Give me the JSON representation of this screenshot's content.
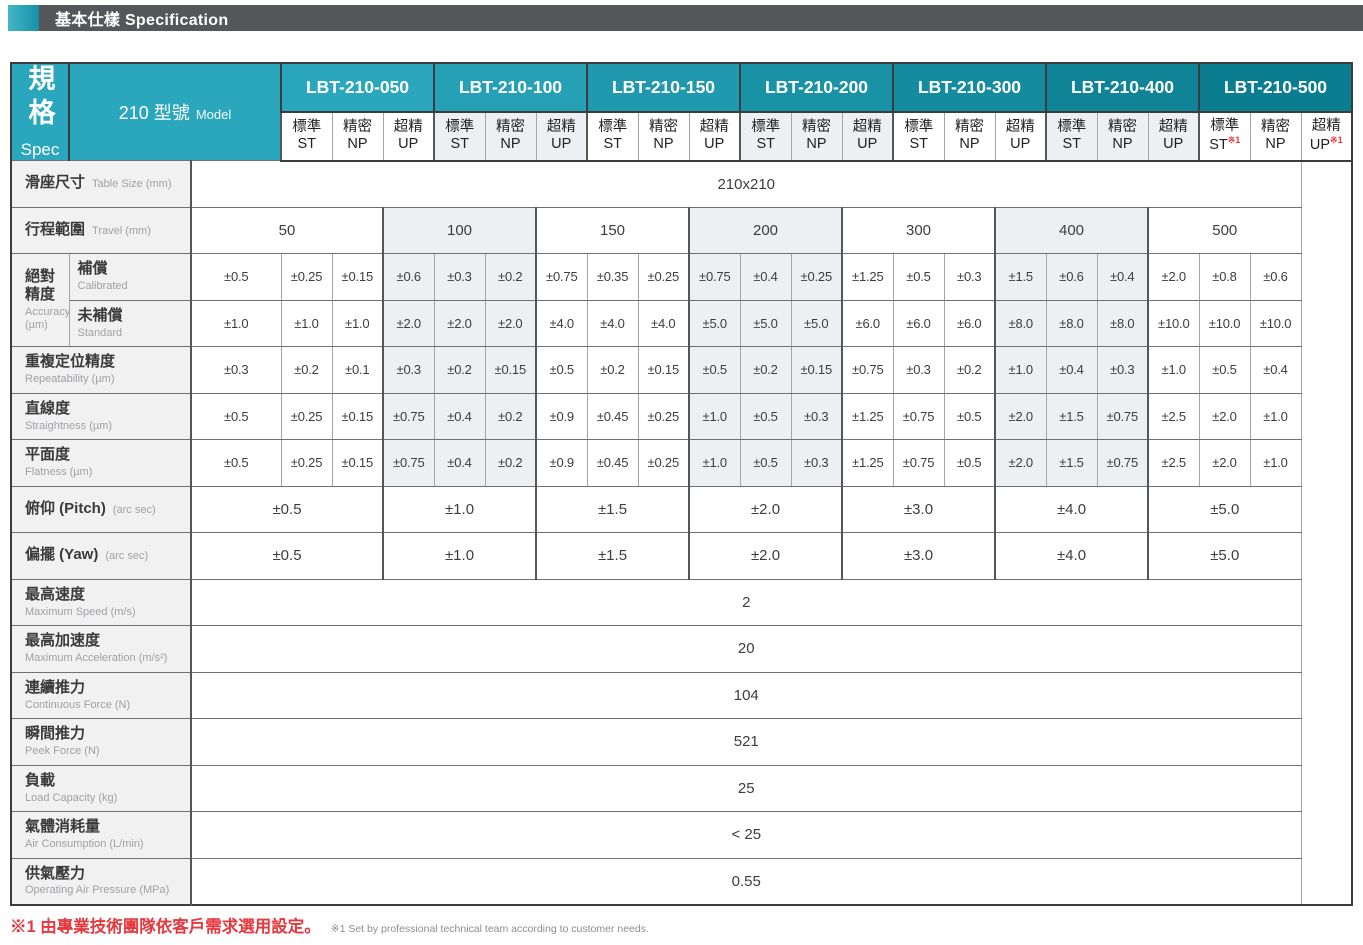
{
  "title_bar": {
    "title": "基本仕樣 Specification"
  },
  "footnote": {
    "zh": "※1 由專業技術團隊依客戶需求選用設定。",
    "en": "※1 Set by professional technical team according to customer needs."
  },
  "colors": {
    "accent_teal": "#2BA7BD",
    "header_teal_dark": "#0A7D90",
    "title_bar_gray": "#545659",
    "shaded_column": "#EDEFF2",
    "row_label_bg": "#F1F1F2",
    "footnote_red": "#E6393F"
  },
  "spec_table": {
    "sidebar": {
      "zh": "規格",
      "en": "Spec"
    },
    "corner": {
      "zh": "210 型號",
      "en": "Model"
    },
    "models": [
      "LBT-210-050",
      "LBT-210-100",
      "LBT-210-150",
      "LBT-210-200",
      "LBT-210-300",
      "LBT-210-400",
      "LBT-210-500"
    ],
    "grades": [
      {
        "zh": "標準",
        "en": "ST"
      },
      {
        "zh": "精密",
        "en": "NP"
      },
      {
        "zh": "超精",
        "en": "UP"
      }
    ],
    "footnote_marks": [
      {
        "model_index": 6,
        "grade_index": 0,
        "mark": "※1"
      },
      {
        "model_index": 6,
        "grade_index": 2,
        "mark": "※1"
      }
    ],
    "rows": [
      {
        "id": "table_size",
        "kind": "full",
        "inline": true,
        "zh": "滑座尺寸",
        "en": "Table Size (mm)",
        "values": [
          "210x210"
        ]
      },
      {
        "id": "travel",
        "kind": "model",
        "inline": true,
        "zh": "行程範圍",
        "en": "Travel (mm)",
        "values": [
          "50",
          "100",
          "150",
          "200",
          "300",
          "400",
          "500"
        ]
      },
      {
        "id": "accuracy_calibrated",
        "kind": "cells",
        "group": {
          "zh": "絕對精度",
          "en": "Accuracy (µm)"
        },
        "sub": {
          "zh": "補償",
          "en": "Calibrated"
        },
        "values": [
          "±0.5",
          "±0.25",
          "±0.15",
          "±0.6",
          "±0.3",
          "±0.2",
          "±0.75",
          "±0.35",
          "±0.25",
          "±0.75",
          "±0.4",
          "±0.25",
          "±1.25",
          "±0.5",
          "±0.3",
          "±1.5",
          "±0.6",
          "±0.4",
          "±2.0",
          "±0.8",
          "±0.6"
        ]
      },
      {
        "id": "accuracy_standard",
        "kind": "cells",
        "sub": {
          "zh": "未補償",
          "en": "Standard"
        },
        "values": [
          "±1.0",
          "±1.0",
          "±1.0",
          "±2.0",
          "±2.0",
          "±2.0",
          "±4.0",
          "±4.0",
          "±4.0",
          "±5.0",
          "±5.0",
          "±5.0",
          "±6.0",
          "±6.0",
          "±6.0",
          "±8.0",
          "±8.0",
          "±8.0",
          "±10.0",
          "±10.0",
          "±10.0"
        ]
      },
      {
        "id": "repeatability",
        "kind": "cells",
        "zh": "重複定位精度",
        "en": "Repeatability (µm)",
        "values": [
          "±0.3",
          "±0.2",
          "±0.1",
          "±0.3",
          "±0.2",
          "±0.15",
          "±0.5",
          "±0.2",
          "±0.15",
          "±0.5",
          "±0.2",
          "±0.15",
          "±0.75",
          "±0.3",
          "±0.2",
          "±1.0",
          "±0.4",
          "±0.3",
          "±1.0",
          "±0.5",
          "±0.4"
        ]
      },
      {
        "id": "straightness",
        "kind": "cells",
        "zh": "直線度",
        "en": "Straightness (µm)",
        "values": [
          "±0.5",
          "±0.25",
          "±0.15",
          "±0.75",
          "±0.4",
          "±0.2",
          "±0.9",
          "±0.45",
          "±0.25",
          "±1.0",
          "±0.5",
          "±0.3",
          "±1.25",
          "±0.75",
          "±0.5",
          "±2.0",
          "±1.5",
          "±0.75",
          "±2.5",
          "±2.0",
          "±1.0"
        ]
      },
      {
        "id": "flatness",
        "kind": "cells",
        "zh": "平面度",
        "en": "Flatness (µm)",
        "values": [
          "±0.5",
          "±0.25",
          "±0.15",
          "±0.75",
          "±0.4",
          "±0.2",
          "±0.9",
          "±0.45",
          "±0.25",
          "±1.0",
          "±0.5",
          "±0.3",
          "±1.25",
          "±0.75",
          "±0.5",
          "±2.0",
          "±1.5",
          "±0.75",
          "±2.5",
          "±2.0",
          "±1.0"
        ]
      },
      {
        "id": "pitch",
        "kind": "model",
        "inline": true,
        "zh": "俯仰 (Pitch)",
        "en": "(arc sec)",
        "values": [
          "±0.5",
          "±1.0",
          "±1.5",
          "±2.0",
          "±3.0",
          "±4.0",
          "±5.0"
        ]
      },
      {
        "id": "yaw",
        "kind": "model",
        "inline": true,
        "zh": "偏擺 (Yaw)",
        "en": "(arc sec)",
        "values": [
          "±0.5",
          "±1.0",
          "±1.5",
          "±2.0",
          "±3.0",
          "±4.0",
          "±5.0"
        ]
      },
      {
        "id": "max_speed",
        "kind": "full",
        "zh": "最高速度",
        "en": "Maximum Speed (m/s)",
        "values": [
          "2"
        ]
      },
      {
        "id": "max_acceleration",
        "kind": "full",
        "zh": "最高加速度",
        "en": "Maximum Acceleration (m/s²)",
        "values": [
          "20"
        ]
      },
      {
        "id": "continuous_force",
        "kind": "full",
        "zh": "連續推力",
        "en": "Continuous Force (N)",
        "values": [
          "104"
        ]
      },
      {
        "id": "peak_force",
        "kind": "full",
        "zh": "瞬間推力",
        "en": "Peek Force (N)",
        "values": [
          "521"
        ]
      },
      {
        "id": "load_capacity",
        "kind": "full",
        "zh": "負載",
        "en": "Load Capacity (kg)",
        "values": [
          "25"
        ]
      },
      {
        "id": "air_consumption",
        "kind": "full",
        "zh": "氣體消耗量",
        "en": "Air Consumption (L/min)",
        "values": [
          "< 25"
        ]
      },
      {
        "id": "operating_air_pressure",
        "kind": "full",
        "zh": "供氣壓力",
        "en": "Operating Air Pressure (MPa)",
        "values": [
          "0.55"
        ]
      }
    ]
  }
}
